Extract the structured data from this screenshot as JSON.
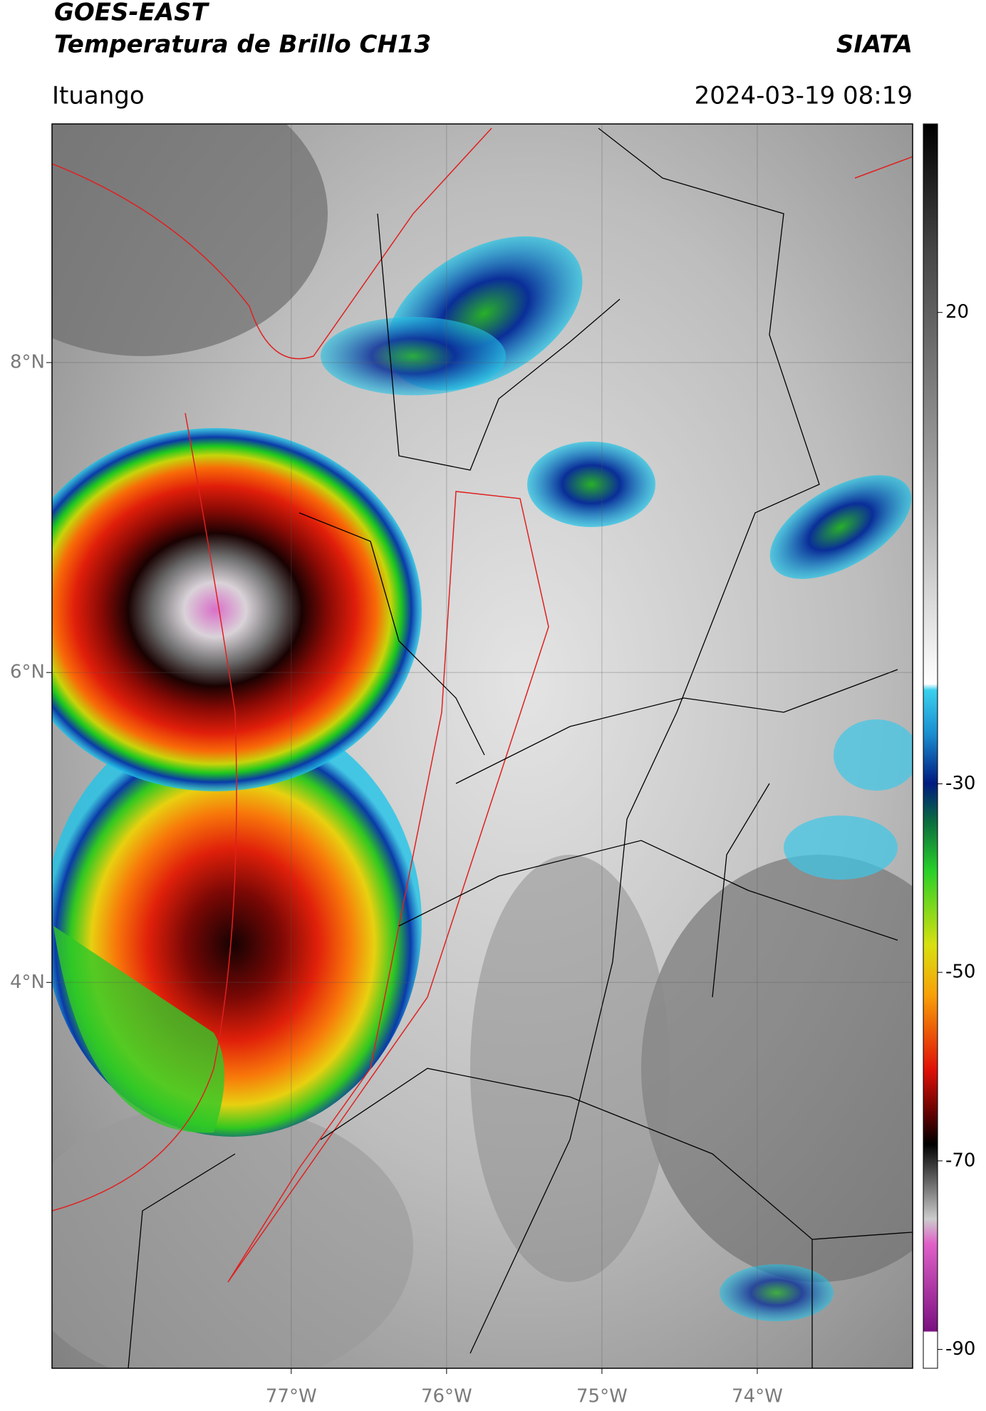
{
  "header": {
    "title": "GOES-EAST",
    "subtitle": "Temperatura de Brillo CH13",
    "source": "SIATA",
    "location": "Ituango",
    "datetime": "2024-03-19 08:19"
  },
  "map": {
    "lon_extent": [
      -78.54,
      -73.0
    ],
    "lat_extent": [
      1.51,
      9.54
    ],
    "lat_ticks": [
      {
        "value": 8,
        "label": "8°N"
      },
      {
        "value": 6,
        "label": "6°N"
      },
      {
        "value": 4,
        "label": "4°N"
      }
    ],
    "lon_ticks": [
      {
        "value": -77,
        "label": "77°W"
      },
      {
        "value": -76,
        "label": "76°W"
      },
      {
        "value": -75,
        "label": "75°W"
      },
      {
        "value": -74,
        "label": "74°W"
      }
    ]
  },
  "colorbar": {
    "range": [
      40,
      -92
    ],
    "ticks": [
      20,
      -30,
      -50,
      -70,
      -90
    ]
  }
}
